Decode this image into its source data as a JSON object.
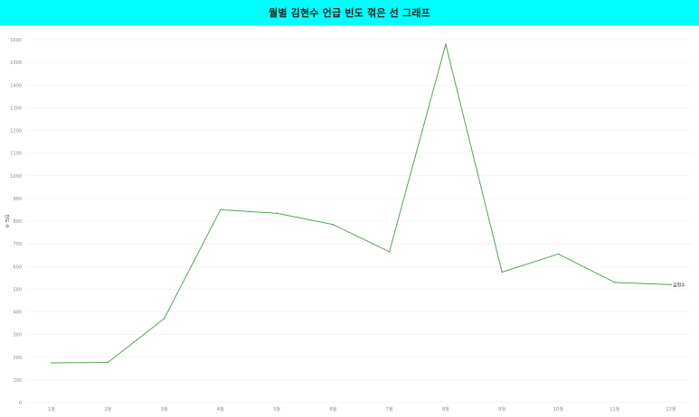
{
  "header": {
    "title": "월별 김현수 언급 빈도 꺾은 선 그래프",
    "background": "#00ffff"
  },
  "chart_data": {
    "type": "line",
    "title": "월별 김현수 언급 빈도 꺾은 선 그래프",
    "xlabel": "",
    "ylabel": "빈도 수",
    "categories": [
      "1월",
      "2월",
      "3월",
      "4월",
      "5월",
      "6월",
      "7월",
      "8월",
      "9월",
      "10월",
      "11월",
      "12월"
    ],
    "series": [
      {
        "name": "김현수",
        "color": "#5aa05a",
        "values": [
          175,
          177,
          370,
          850,
          835,
          785,
          665,
          1580,
          575,
          655,
          530,
          520
        ]
      }
    ],
    "ylim": [
      0,
      1600
    ],
    "yticks": [
      0,
      100,
      200,
      300,
      400,
      500,
      600,
      700,
      800,
      900,
      1000,
      1100,
      1200,
      1300,
      1400,
      1500,
      1600
    ],
    "grid": true,
    "legend": "end-of-line label"
  }
}
